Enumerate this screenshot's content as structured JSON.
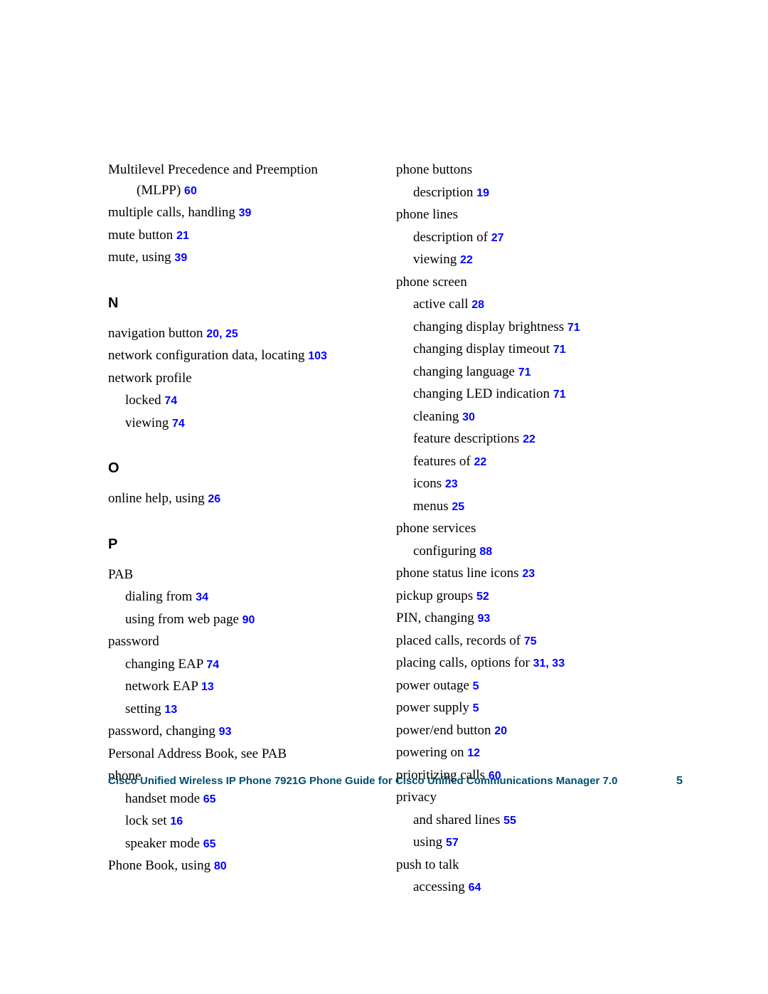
{
  "link_color": "#0000ff",
  "text_color": "#000000",
  "footer_color": "#005073",
  "background_color": "#ffffff",
  "font_family_body": "Georgia, 'Times New Roman', serif",
  "font_family_heading": "Arial, Helvetica, sans-serif",
  "body_fontsize": 19,
  "pageref_fontsize": 16,
  "section_fontsize": 20,
  "footer": {
    "title": "Cisco Unified Wireless IP Phone 7921G Phone Guide for Cisco Unified Communications Manager 7.0",
    "page": "5"
  },
  "sections": {
    "n_letter": "N",
    "o_letter": "O",
    "p_letter": "P"
  },
  "left": {
    "mlpp": {
      "text": "Multilevel Precedence and Preemption (MLPP)",
      "ref1": "60"
    },
    "multiple_calls": {
      "text": "multiple calls, handling",
      "ref1": "39"
    },
    "mute_button": {
      "text": "mute button",
      "ref1": "21"
    },
    "mute_using": {
      "text": "mute, using",
      "ref1": "39"
    },
    "nav_button": {
      "text": "navigation button",
      "ref1": "20",
      "ref2": "25"
    },
    "net_config": {
      "text": "network configuration data, locating",
      "ref1": "103"
    },
    "net_profile": {
      "text": "network profile"
    },
    "np_locked": {
      "text": "locked",
      "ref1": "74"
    },
    "np_viewing": {
      "text": "viewing",
      "ref1": "74"
    },
    "online_help": {
      "text": "online help, using",
      "ref1": "26"
    },
    "pab": {
      "text": "PAB"
    },
    "pab_dialing": {
      "text": "dialing from",
      "ref1": "34"
    },
    "pab_web": {
      "text": "using from web page",
      "ref1": "90"
    },
    "password": {
      "text": "password"
    },
    "pw_change_eap": {
      "text": "changing EAP",
      "ref1": "74"
    },
    "pw_net_eap": {
      "text": "network EAP",
      "ref1": "13"
    },
    "pw_setting": {
      "text": "setting",
      "ref1": "13"
    },
    "pw_changing": {
      "text": "password, changing",
      "ref1": "93"
    },
    "pers_addr": {
      "text": "Personal Address Book, see PAB"
    },
    "phone": {
      "text": "phone"
    },
    "ph_handset": {
      "text": "handset mode",
      "ref1": "65"
    },
    "ph_lock": {
      "text": "lock set",
      "ref1": "16"
    },
    "ph_speaker": {
      "text": "speaker mode",
      "ref1": "65"
    },
    "phone_book": {
      "text": "Phone Book, using",
      "ref1": "80"
    }
  },
  "right": {
    "phone_buttons": {
      "text": "phone buttons"
    },
    "pb_desc": {
      "text": "description",
      "ref1": "19"
    },
    "phone_lines": {
      "text": "phone lines"
    },
    "pl_desc": {
      "text": "description of",
      "ref1": "27"
    },
    "pl_viewing": {
      "text": "viewing",
      "ref1": "22"
    },
    "phone_screen": {
      "text": "phone screen"
    },
    "ps_active": {
      "text": "active call",
      "ref1": "28"
    },
    "ps_brightness": {
      "text": "changing display brightness",
      "ref1": "71"
    },
    "ps_timeout": {
      "text": "changing display timeout",
      "ref1": "71"
    },
    "ps_language": {
      "text": "changing language",
      "ref1": "71"
    },
    "ps_led": {
      "text": "changing LED indication",
      "ref1": "71"
    },
    "ps_cleaning": {
      "text": "cleaning",
      "ref1": "30"
    },
    "ps_feat_desc": {
      "text": "feature descriptions",
      "ref1": "22"
    },
    "ps_feat_of": {
      "text": "features of",
      "ref1": "22"
    },
    "ps_icons": {
      "text": "icons",
      "ref1": "23"
    },
    "ps_menus": {
      "text": "menus",
      "ref1": "25"
    },
    "phone_services": {
      "text": "phone services"
    },
    "psvc_config": {
      "text": "configuring",
      "ref1": "88"
    },
    "status_line": {
      "text": "phone status line icons",
      "ref1": "23"
    },
    "pickup": {
      "text": "pickup groups",
      "ref1": "52"
    },
    "pin": {
      "text": "PIN, changing",
      "ref1": "93"
    },
    "placed": {
      "text": "placed calls, records of",
      "ref1": "75"
    },
    "placing": {
      "text": "placing calls, options for",
      "ref1": "31",
      "ref2": "33"
    },
    "outage": {
      "text": "power outage",
      "ref1": "5"
    },
    "supply": {
      "text": "power supply",
      "ref1": "5"
    },
    "powerend": {
      "text": "power/end button",
      "ref1": "20"
    },
    "powering": {
      "text": "powering on",
      "ref1": "12"
    },
    "prioritizing": {
      "text": "prioritizing calls",
      "ref1": "60"
    },
    "privacy": {
      "text": "privacy"
    },
    "priv_shared": {
      "text": "and shared lines",
      "ref1": "55"
    },
    "priv_using": {
      "text": "using",
      "ref1": "57"
    },
    "push": {
      "text": "push to talk"
    },
    "push_access": {
      "text": "accessing",
      "ref1": "64"
    }
  }
}
